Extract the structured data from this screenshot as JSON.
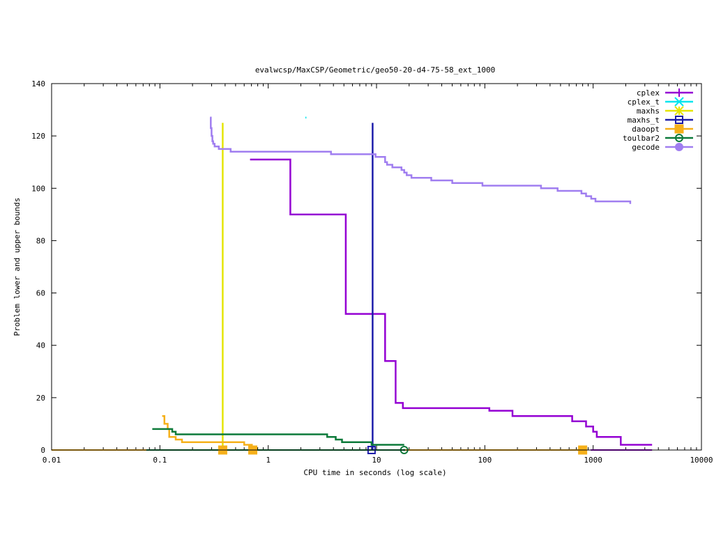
{
  "chart_data": {
    "type": "line",
    "title": "evalwcsp/MaxCSP/Geometric/geo50-20-d4-75-58_ext_1000",
    "xlabel": "CPU time in seconds (log scale)",
    "ylabel": "Problem lower and upper bounds",
    "xscale": "log",
    "xlim": [
      0.01,
      10000
    ],
    "ylim": [
      0,
      140
    ],
    "x_ticks": [
      0.01,
      0.1,
      1,
      10,
      100,
      1000,
      10000
    ],
    "x_tick_labels": [
      "0.01",
      "0.1",
      "1",
      "10",
      "100",
      "1000",
      "10000"
    ],
    "y_ticks": [
      0,
      20,
      40,
      60,
      80,
      100,
      120,
      140
    ],
    "y_tick_labels": [
      "0",
      "20",
      "40",
      "60",
      "80",
      "100",
      "120",
      "140"
    ],
    "legend_position": "top-right",
    "series": [
      {
        "name": "cplex",
        "color": "#9400d3",
        "marker": "plus",
        "step": true,
        "points": [
          [
            0.68,
            111
          ],
          [
            1.6,
            111
          ],
          [
            1.6,
            90
          ],
          [
            5.2,
            90
          ],
          [
            5.2,
            52
          ],
          [
            12.0,
            52
          ],
          [
            12.0,
            34
          ],
          [
            15.0,
            34
          ],
          [
            15.0,
            18
          ],
          [
            17.5,
            18
          ],
          [
            17.5,
            16
          ],
          [
            110,
            16
          ],
          [
            110,
            15
          ],
          [
            180,
            15
          ],
          [
            180,
            13
          ],
          [
            640,
            13
          ],
          [
            640,
            11
          ],
          [
            860,
            11
          ],
          [
            860,
            9
          ],
          [
            1000,
            9
          ],
          [
            1000,
            7
          ],
          [
            1080,
            7
          ],
          [
            1080,
            5
          ],
          [
            1800,
            5
          ],
          [
            1800,
            2
          ],
          [
            3500,
            2
          ]
        ],
        "lower": [
          [
            950,
            0
          ],
          [
            3500,
            0
          ]
        ],
        "marker_points": []
      },
      {
        "name": "cplex_t",
        "color": "#00e5ee",
        "marker": "x",
        "step": true,
        "points": [
          [
            2.2,
            127
          ],
          [
            2.25,
            127
          ]
        ],
        "marker_points": []
      },
      {
        "name": "maxhs",
        "color": "#e5e500",
        "marker": "star",
        "step": true,
        "points": [
          [
            0.38,
            125
          ],
          [
            0.38,
            0
          ]
        ],
        "marker_points": [
          [
            0.38,
            0
          ]
        ]
      },
      {
        "name": "maxhs_t",
        "color": "#1c1caa",
        "marker": "square",
        "step": true,
        "points": [
          [
            9.2,
            125
          ],
          [
            9.2,
            0
          ]
        ],
        "marker_points": [
          [
            9.0,
            0
          ]
        ]
      },
      {
        "name": "daoopt",
        "color": "#f5b01a",
        "marker": "filled-square",
        "step": true,
        "points": [
          [
            0.105,
            13
          ],
          [
            0.11,
            13
          ],
          [
            0.11,
            10
          ],
          [
            0.118,
            10
          ],
          [
            0.118,
            8
          ],
          [
            0.122,
            8
          ],
          [
            0.122,
            5
          ],
          [
            0.14,
            5
          ],
          [
            0.14,
            4
          ],
          [
            0.16,
            4
          ],
          [
            0.16,
            3
          ],
          [
            0.6,
            3
          ],
          [
            0.6,
            2
          ],
          [
            0.72,
            2
          ]
        ],
        "lower": [
          [
            0.01,
            0
          ],
          [
            800,
            0
          ]
        ],
        "marker_points": [
          [
            0.38,
            0
          ],
          [
            0.72,
            0
          ],
          [
            800,
            0
          ]
        ]
      },
      {
        "name": "toulbar2",
        "color": "#0c7a3a",
        "marker": "circle",
        "step": true,
        "points": [
          [
            0.085,
            8
          ],
          [
            0.13,
            8
          ],
          [
            0.13,
            7
          ],
          [
            0.14,
            7
          ],
          [
            0.14,
            6
          ],
          [
            3.5,
            6
          ],
          [
            3.5,
            5
          ],
          [
            4.2,
            5
          ],
          [
            4.2,
            4
          ],
          [
            4.8,
            4
          ],
          [
            4.8,
            3
          ],
          [
            9.0,
            3
          ],
          [
            9.0,
            2
          ],
          [
            18.0,
            2
          ]
        ],
        "lower": [
          [
            0.075,
            0
          ],
          [
            18.0,
            0
          ]
        ],
        "marker_points": [
          [
            18.0,
            0
          ]
        ]
      },
      {
        "name": "gecode",
        "color": "#a07ef0",
        "marker": "filled-circle",
        "step": true,
        "points": [
          [
            0.29,
            127
          ],
          [
            0.295,
            127
          ],
          [
            0.295,
            123
          ],
          [
            0.3,
            123
          ],
          [
            0.3,
            120
          ],
          [
            0.305,
            120
          ],
          [
            0.305,
            118
          ],
          [
            0.31,
            118
          ],
          [
            0.31,
            117
          ],
          [
            0.32,
            117
          ],
          [
            0.32,
            116
          ],
          [
            0.35,
            116
          ],
          [
            0.35,
            115
          ],
          [
            0.45,
            115
          ],
          [
            0.45,
            114
          ],
          [
            3.8,
            114
          ],
          [
            3.8,
            113
          ],
          [
            9.8,
            113
          ],
          [
            9.8,
            112
          ],
          [
            12.0,
            112
          ],
          [
            12.0,
            110
          ],
          [
            12.5,
            110
          ],
          [
            12.5,
            109
          ],
          [
            14.0,
            109
          ],
          [
            14.0,
            108
          ],
          [
            17.0,
            108
          ],
          [
            17.0,
            107
          ],
          [
            18.0,
            107
          ],
          [
            18.0,
            106
          ],
          [
            19.0,
            106
          ],
          [
            19.0,
            105
          ],
          [
            21.0,
            105
          ],
          [
            21.0,
            104
          ],
          [
            32.0,
            104
          ],
          [
            32.0,
            103
          ],
          [
            50.0,
            103
          ],
          [
            50.0,
            102
          ],
          [
            95.0,
            102
          ],
          [
            95.0,
            101
          ],
          [
            330,
            101
          ],
          [
            330,
            100
          ],
          [
            470,
            100
          ],
          [
            470,
            99
          ],
          [
            780,
            99
          ],
          [
            780,
            98
          ],
          [
            860,
            98
          ],
          [
            860,
            97
          ],
          [
            960,
            97
          ],
          [
            960,
            96
          ],
          [
            1050,
            96
          ],
          [
            1050,
            95
          ],
          [
            2200,
            95
          ],
          [
            2200,
            94
          ]
        ],
        "marker_points": []
      }
    ]
  }
}
